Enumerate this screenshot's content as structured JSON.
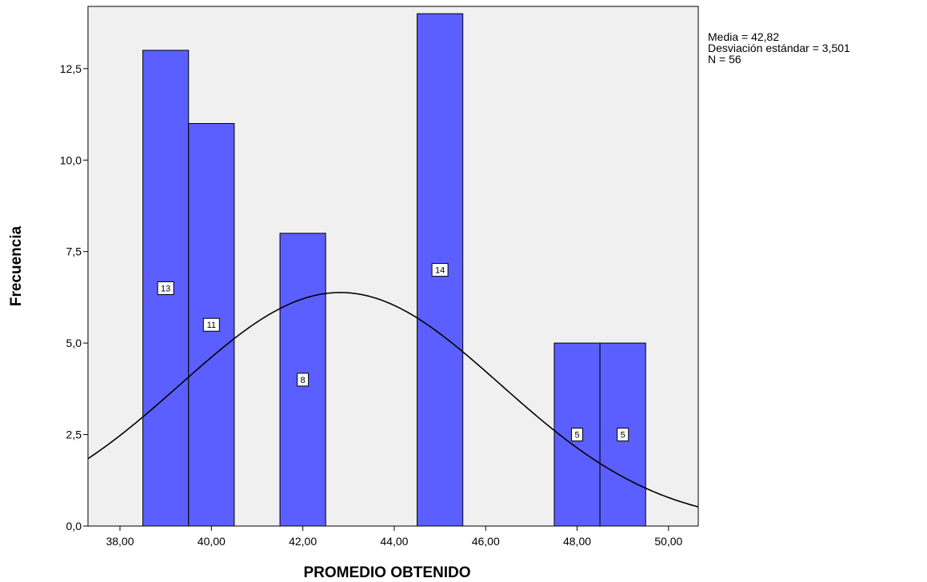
{
  "chart_data": {
    "type": "bar",
    "subtype": "histogram",
    "xlabel": "PROMEDIO OBTENIDO",
    "ylabel": "Frecuencia",
    "xlim": [
      37.3,
      50.65
    ],
    "ylim": [
      0,
      14.2
    ],
    "x_ticks": [
      38,
      40,
      42,
      44,
      46,
      48,
      50
    ],
    "x_tick_labels": [
      "38,00",
      "40,00",
      "42,00",
      "44,00",
      "46,00",
      "48,00",
      "50,00"
    ],
    "y_ticks": [
      0,
      2.5,
      5,
      7.5,
      10,
      12.5
    ],
    "y_tick_labels": [
      "0,0",
      "2,5",
      "5,0",
      "7,5",
      "10,0",
      "12,5"
    ],
    "bins": [
      {
        "start": 38.5,
        "end": 39.5,
        "value": 13,
        "label": "13"
      },
      {
        "start": 39.5,
        "end": 40.5,
        "value": 11,
        "label": "11"
      },
      {
        "start": 41.5,
        "end": 42.5,
        "value": 8,
        "label": "8"
      },
      {
        "start": 44.5,
        "end": 45.5,
        "value": 14,
        "label": "14"
      },
      {
        "start": 47.5,
        "end": 48.5,
        "value": 5,
        "label": "5"
      },
      {
        "start": 48.5,
        "end": 49.5,
        "value": 5,
        "label": "5"
      }
    ],
    "normal_curve": {
      "mean": 42.82,
      "sd": 3.501,
      "n": 56,
      "bin_width": 1
    },
    "stats_lines": [
      "Media = 42,82",
      "Desviación estándar = 3,501",
      "N = 56"
    ],
    "grid": false,
    "legend": "none",
    "colors": {
      "bar_fill": "#5b5fff",
      "bar_stroke": "#000000",
      "plot_background": "#f0f0f0",
      "curve": "#000000"
    }
  }
}
